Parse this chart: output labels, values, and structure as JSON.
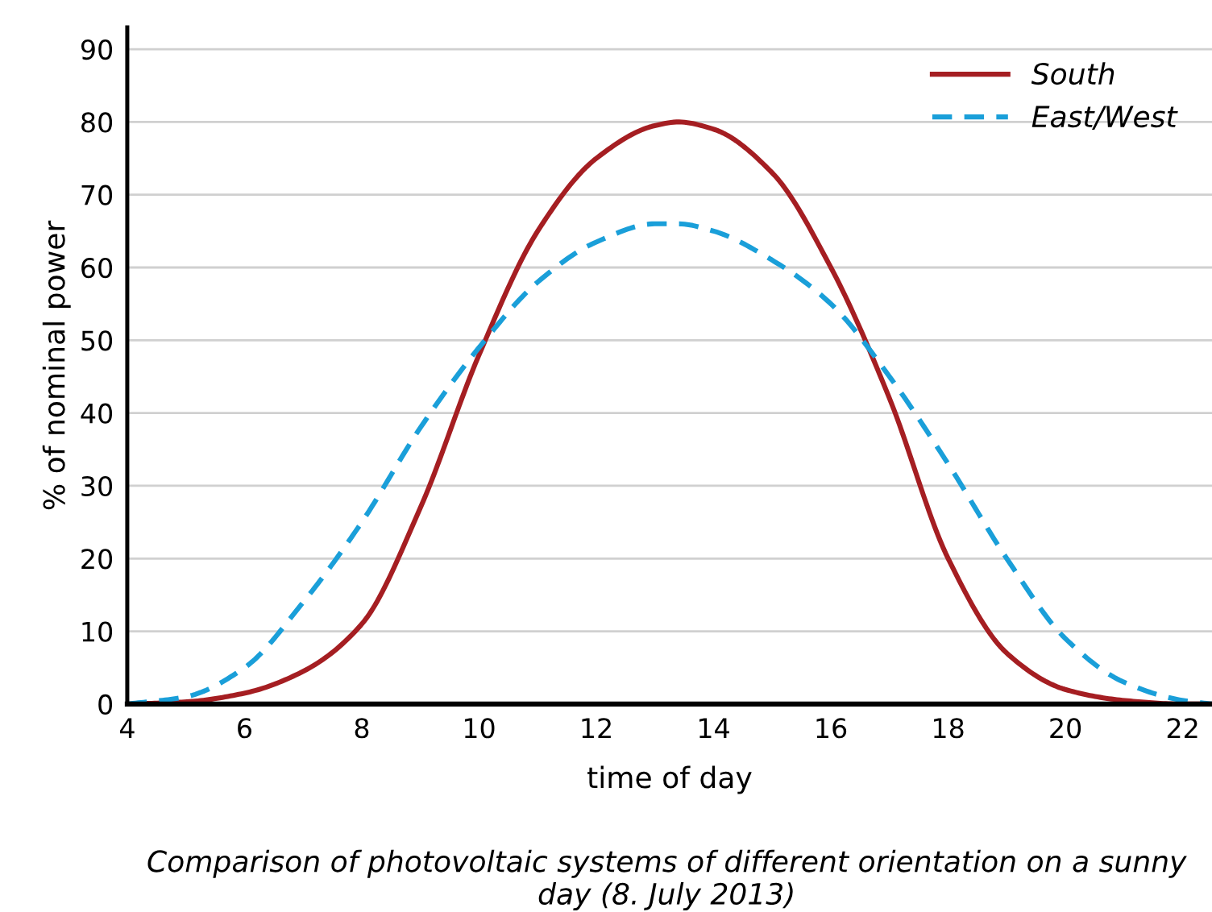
{
  "chart_data": {
    "type": "line",
    "xlabel": "time of day",
    "ylabel": "% of nominal power",
    "annotations": [
      "Comparison of photovoltaic systems of different orientation on a sunny day (8. July 2013)"
    ],
    "x": [
      4,
      5,
      6,
      7,
      8,
      9,
      10,
      11,
      12,
      13,
      13.4,
      14,
      15,
      16,
      17,
      18,
      19,
      20,
      21,
      22,
      22.5
    ],
    "series": [
      {
        "name": "South",
        "color": "#a51e22",
        "line_style": "solid",
        "values": [
          0,
          0.3,
          1.5,
          4.5,
          11,
          27,
          48,
          65,
          75,
          79.5,
          80,
          79,
          73,
          60,
          42,
          20,
          7,
          2,
          0.5,
          0,
          0
        ]
      },
      {
        "name": "East/West",
        "color": "#1a9fd9",
        "line_style": "dashed",
        "values": [
          0,
          1,
          5,
          14,
          25,
          38,
          49,
          58,
          63.5,
          66,
          66,
          65,
          61,
          55,
          45,
          33,
          20,
          9,
          3,
          0.5,
          0
        ]
      }
    ],
    "xlim": [
      4,
      22.5
    ],
    "ylim": [
      0,
      93
    ],
    "xticks": [
      4,
      6,
      8,
      10,
      12,
      14,
      16,
      18,
      20,
      22
    ],
    "yticks": [
      0,
      10,
      20,
      30,
      40,
      50,
      60,
      70,
      80,
      90
    ],
    "grid": "y",
    "legend": "top right",
    "marker": "none"
  }
}
